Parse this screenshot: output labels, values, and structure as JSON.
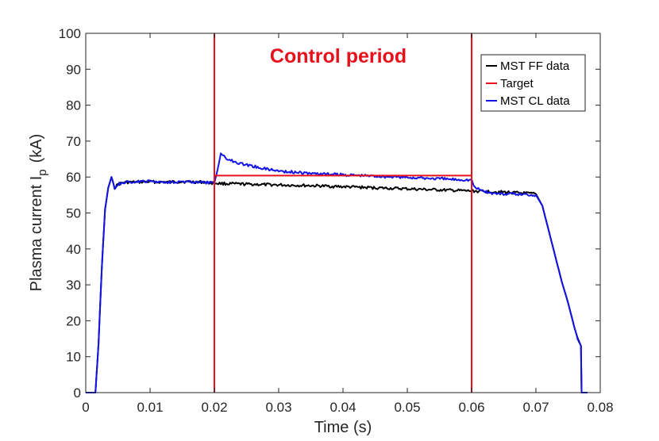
{
  "chart_data": {
    "type": "line",
    "title": "",
    "xlabel": "Time (s)",
    "ylabel_main": "Plasma current I",
    "ylabel_sub": "p",
    "ylabel_unit": "(kA)",
    "xlim": [
      0,
      0.08
    ],
    "ylim": [
      0,
      100
    ],
    "xticks": [
      0,
      0.01,
      0.02,
      0.03,
      0.04,
      0.05,
      0.06,
      0.07,
      0.08
    ],
    "xtick_labels": [
      "0",
      "0.01",
      "0.02",
      "0.03",
      "0.04",
      "0.05",
      "0.06",
      "0.07",
      "0.08"
    ],
    "yticks": [
      0,
      10,
      20,
      30,
      40,
      50,
      60,
      70,
      80,
      90,
      100
    ],
    "ytick_labels": [
      "0",
      "10",
      "20",
      "30",
      "40",
      "50",
      "60",
      "70",
      "80",
      "90",
      "100"
    ],
    "grid": false,
    "legend_position": "top-right",
    "annotations": [
      {
        "text": "Control period",
        "color": "#e8101a",
        "x": 0.04,
        "y": 92.5
      }
    ],
    "vertical_lines": [
      {
        "x": 0.02,
        "color": "#e8101a"
      },
      {
        "x": 0.06,
        "color": "#e8101a"
      }
    ],
    "series": [
      {
        "name": "MST FF data",
        "color": "#000000",
        "x": [
          0,
          0.0015,
          0.002,
          0.0025,
          0.003,
          0.0035,
          0.004,
          0.0045,
          0.005,
          0.006,
          0.008,
          0.01,
          0.012,
          0.015,
          0.018,
          0.02,
          0.021,
          0.025,
          0.03,
          0.035,
          0.04,
          0.045,
          0.05,
          0.055,
          0.06,
          0.065,
          0.07,
          0.071,
          0.072,
          0.073,
          0.074,
          0.075,
          0.076,
          0.0765,
          0.077,
          0.0771,
          0.078
        ],
        "y": [
          0,
          0,
          14,
          35,
          51,
          57,
          60,
          57,
          58,
          58.5,
          58.6,
          58.7,
          58.6,
          58.7,
          58.6,
          58.3,
          58.2,
          58.0,
          57.8,
          57.6,
          57.3,
          57.0,
          56.7,
          56.4,
          56.1,
          55.8,
          55.3,
          52,
          45,
          38,
          31,
          25,
          18,
          15,
          13,
          0,
          0
        ]
      },
      {
        "name": "Target",
        "color": "#e8101a",
        "x": [
          0.02,
          0.06
        ],
        "y": [
          60.4,
          60.4
        ]
      },
      {
        "name": "MST CL data",
        "color": "#1414e6",
        "x": [
          0,
          0.0015,
          0.002,
          0.0025,
          0.003,
          0.0035,
          0.004,
          0.0045,
          0.005,
          0.006,
          0.008,
          0.01,
          0.012,
          0.015,
          0.018,
          0.02,
          0.0205,
          0.021,
          0.0215,
          0.022,
          0.024,
          0.026,
          0.028,
          0.03,
          0.034,
          0.038,
          0.042,
          0.046,
          0.05,
          0.054,
          0.058,
          0.06,
          0.0605,
          0.063,
          0.065,
          0.068,
          0.07,
          0.071,
          0.072,
          0.073,
          0.074,
          0.075,
          0.076,
          0.0765,
          0.077,
          0.0771,
          0.078
        ],
        "y": [
          0,
          0,
          14,
          35,
          51,
          57,
          60,
          57,
          58,
          58.5,
          58.7,
          58.8,
          58.6,
          58.7,
          58.5,
          58.3,
          62,
          66.5,
          66,
          65,
          63.8,
          63,
          62.3,
          61.7,
          61.1,
          60.8,
          60.5,
          60.2,
          59.9,
          59.6,
          59.3,
          59.2,
          57,
          55.5,
          55.3,
          55.2,
          55.0,
          52,
          45,
          38,
          31,
          25,
          18,
          15,
          13,
          0,
          0
        ]
      }
    ]
  }
}
